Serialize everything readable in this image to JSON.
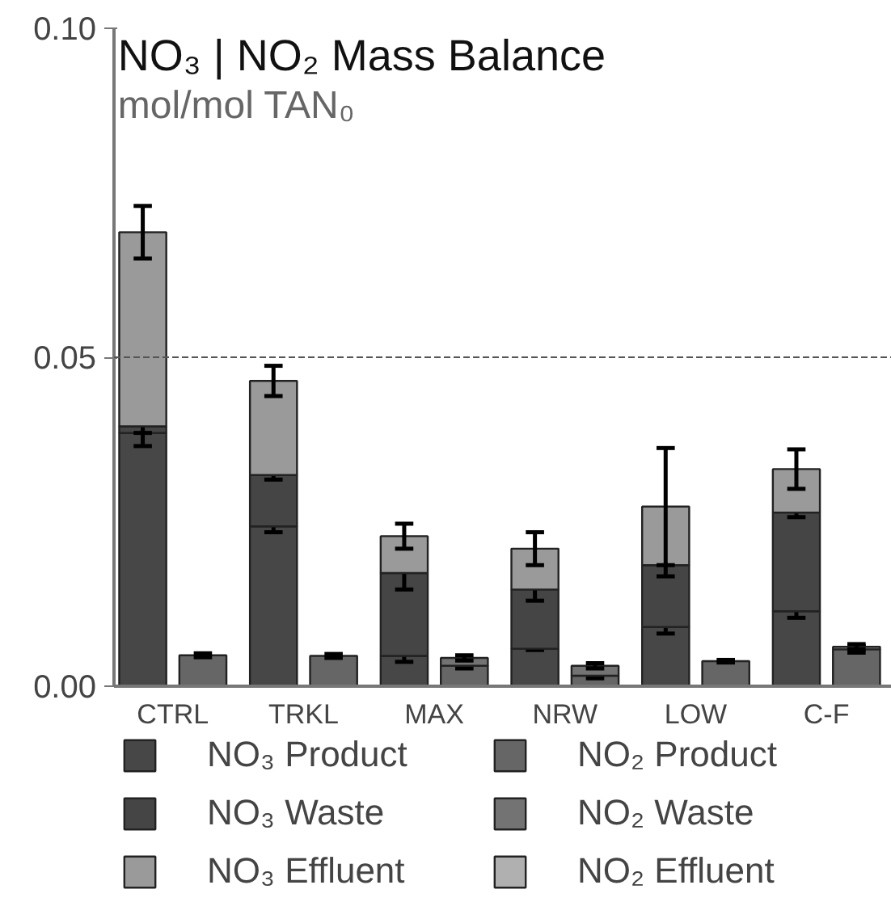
{
  "chart_data": {
    "type": "bar",
    "title": "NO₃ | NO₂ Mass Balance",
    "subtitle": "mol/mol TAN₀",
    "categories": [
      "CTRL",
      "TRKL",
      "MAX",
      "NRW",
      "LOW",
      "C-F"
    ],
    "series": [
      {
        "name": "NO₃ Product",
        "color": "#474747",
        "base": [
          0,
          0,
          0,
          0,
          0,
          0
        ],
        "values": [
          0.0385,
          0.0243,
          0.0046,
          0.0057,
          0.009,
          0.0114
        ],
        "errors": [
          0.002,
          0.0009,
          0.0009,
          0.0002,
          0.001,
          0.001
        ]
      },
      {
        "name": "NO₃ Waste",
        "color": "#454545",
        "base": [
          0.0385,
          0.0243,
          0.0046,
          0.0057,
          0.009,
          0.0114
        ],
        "values": [
          0.001,
          0.0078,
          0.0126,
          0.009,
          0.0094,
          0.015
        ],
        "errors": [
          0.001,
          0.0007,
          0.0025,
          0.0017,
          0.0017,
          0.0007
        ]
      },
      {
        "name": "NO₃ Effluent",
        "color": "#9a9a9a",
        "base": [
          0.0395,
          0.0321,
          0.0172,
          0.0147,
          0.0184,
          0.0264
        ],
        "values": [
          0.0295,
          0.0143,
          0.0056,
          0.0062,
          0.0089,
          0.0066
        ],
        "errors": [
          0.004,
          0.0023,
          0.0019,
          0.0025,
          0.0089,
          0.003
        ]
      },
      {
        "name": "NO₂ Product",
        "color": "#666666",
        "base": [
          0,
          0,
          0,
          0,
          0,
          0
        ],
        "values": [
          0.0047,
          0.0046,
          0.0031,
          0.0016,
          0.0038,
          0.0056
        ],
        "errors": [
          0.0003,
          0.0003,
          0.0004,
          0.0004,
          0.0002,
          0.0005
        ]
      },
      {
        "name": "NO₂ Waste",
        "color": "#737373",
        "base": [
          null,
          null,
          0.0031,
          0.0016,
          null,
          0.0056
        ],
        "values": [
          null,
          null,
          0.0012,
          0.0015,
          null,
          0.0004
        ],
        "errors": [
          null,
          null,
          0.0004,
          0.0004,
          null,
          0.0004
        ]
      },
      {
        "name": "NO₂ Effluent",
        "color": "#b0b0b0",
        "values": [
          null,
          null,
          null,
          null,
          null,
          null
        ]
      }
    ],
    "ylim": [
      0,
      0.1
    ],
    "yticks": [
      {
        "value": 0,
        "label": "0.00"
      },
      {
        "value": 0.05,
        "label": "0.05"
      },
      {
        "value": 0.1,
        "label": "0.10"
      }
    ],
    "ref_lines": [
      {
        "axis": "y",
        "value": 0.05,
        "line_style": "dashed",
        "color": "#555555"
      }
    ],
    "grid": false,
    "legend": "bottom"
  }
}
